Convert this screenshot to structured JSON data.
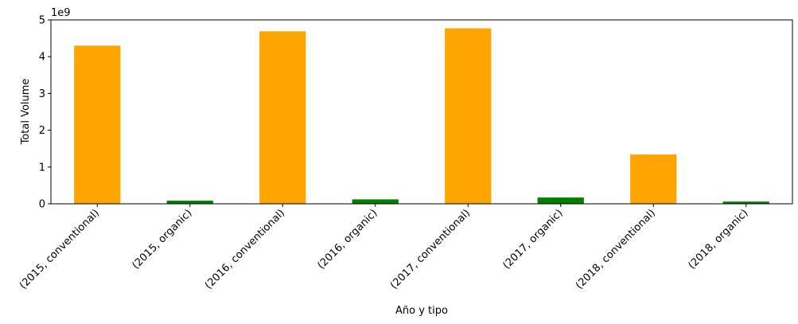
{
  "chart_data": {
    "type": "bar",
    "title": "",
    "xlabel": "Año y tipo",
    "ylabel": "Total Volume",
    "offset_label": "1e9",
    "categories": [
      "(2015, conventional)",
      "(2015, organic)",
      "(2016, conventional)",
      "(2016, organic)",
      "(2017, conventional)",
      "(2017, organic)",
      "(2018, conventional)",
      "(2018, organic)"
    ],
    "values": [
      4300000000.0,
      85000000.0,
      4690000000.0,
      120000000.0,
      4770000000.0,
      170000000.0,
      1340000000.0,
      60000000.0
    ],
    "colors": [
      "#ffa500",
      "#008000",
      "#ffa500",
      "#008000",
      "#ffa500",
      "#008000",
      "#ffa500",
      "#008000"
    ],
    "ylim": [
      0,
      5000000000.0
    ],
    "yticks": [
      0,
      1,
      2,
      3,
      4,
      5
    ],
    "grid": false
  }
}
